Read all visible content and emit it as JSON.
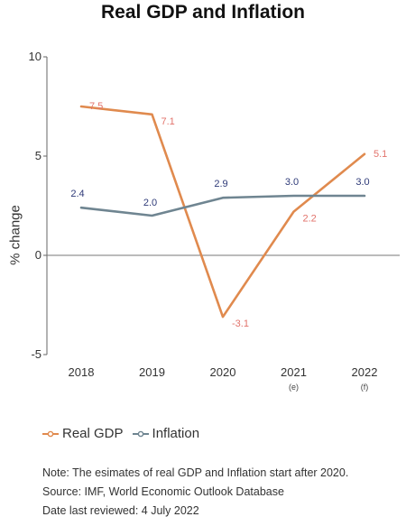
{
  "chart_data": {
    "type": "line",
    "title": "Real GDP and Inflation",
    "ylabel": "% change",
    "xlabel": "",
    "categories": [
      "2018",
      "2019",
      "2020",
      "2021",
      "2022"
    ],
    "category_notes": [
      "",
      "",
      "",
      "(e)",
      "(f)"
    ],
    "ylim": [
      -5,
      10
    ],
    "yticks": [
      -5,
      0,
      5,
      10
    ],
    "series": [
      {
        "name": "Real GDP",
        "color": "#e08a4e",
        "label_color": "#e2736b",
        "values": [
          7.5,
          7.1,
          -3.1,
          2.2,
          5.1
        ],
        "labels": [
          "7.5",
          "7.1",
          "-3.1",
          "2.2",
          "5.1"
        ]
      },
      {
        "name": "Inflation",
        "color": "#6f8591",
        "label_color": "#2e3a78",
        "values": [
          2.4,
          2.0,
          2.9,
          3.0,
          3.0
        ],
        "labels": [
          "2.4",
          "2.0",
          "2.9",
          "3.0",
          "3.0"
        ]
      }
    ],
    "legend_position": "bottom-left",
    "grid": false
  },
  "notes": [
    "Note: The esimates of real GDP and Inflation start after 2020.",
    "Source: IMF, World Economic Outlook Database",
    "Date last reviewed: 4 July 2022"
  ]
}
